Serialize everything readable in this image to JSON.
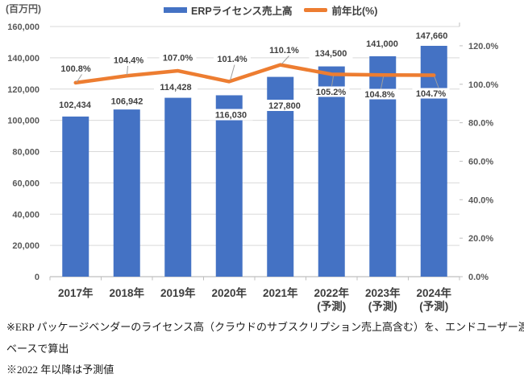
{
  "header": {
    "unit_label": "(百万円)"
  },
  "legend": {
    "items": [
      {
        "label": "ERPライセンス売上高",
        "marker": "bar",
        "color": "#4472C4"
      },
      {
        "label": "前年比(%)",
        "marker": "line",
        "color": "#ED7D31"
      }
    ]
  },
  "chart_data": {
    "type": "bar",
    "subtype": "combo-bar-line",
    "title": "",
    "categories": [
      "2017年",
      "2018年",
      "2019年",
      "2020年",
      "2021年",
      "2022年",
      "2023年",
      "2024年"
    ],
    "category_sublabels": [
      "",
      "",
      "",
      "",
      "",
      "(予測)",
      "(予測)",
      "(予測)"
    ],
    "series": [
      {
        "name": "ERPライセンス売上高",
        "type": "bar",
        "axis": "left",
        "color": "#4472C4",
        "values": [
          102434,
          106942,
          114428,
          116030,
          127800,
          134500,
          141000,
          147660
        ],
        "value_labels": [
          "102,434",
          "106,942",
          "114,428",
          "116,030",
          "127,800",
          "134,500",
          "141,000",
          "147,660"
        ]
      },
      {
        "name": "前年比(%)",
        "type": "line",
        "axis": "right",
        "color": "#ED7D31",
        "values": [
          100.8,
          104.4,
          107.0,
          101.4,
          110.1,
          105.2,
          104.8,
          104.7
        ],
        "value_labels": [
          "100.8%",
          "104.4%",
          "107.0%",
          "101.4%",
          "110.1%",
          "105.2%",
          "104.8%",
          "104.7%"
        ]
      }
    ],
    "left_axis": {
      "unit": "(百万円)",
      "min": 0,
      "max": 160000,
      "step": 20000,
      "tick_labels": [
        "0",
        "20,000",
        "40,000",
        "60,000",
        "80,000",
        "100,000",
        "120,000",
        "140,000",
        "160,000"
      ]
    },
    "right_axis": {
      "min": 0,
      "max": 130,
      "step": 20,
      "tick_labels": [
        "0.0%",
        "20.0%",
        "40.0%",
        "60.0%",
        "80.0%",
        "100.0%",
        "120.0%"
      ]
    },
    "legend_position": "top",
    "grid": "horizontal"
  },
  "colors": {
    "bar": "#4472C4",
    "line": "#ED7D31",
    "gridline": "#D9D9D9",
    "axis": "#BFBFBF",
    "tick_text": "#595959",
    "label_text": "#404040",
    "leader": "#9e9e9e"
  },
  "footnotes": [
    "※ERP パッケージベンダーのライセンス高（クラウドのサブスクリプション売上高含む）を、エンドユーザー渡し価格",
    "ベースで算出",
    "※2022 年以降は予測値"
  ]
}
